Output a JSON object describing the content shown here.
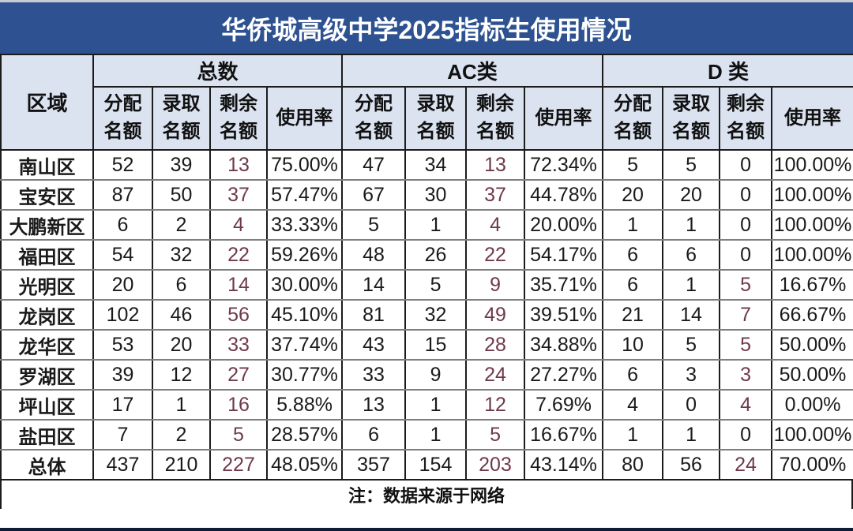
{
  "title": "华侨城高级中学2025指标生使用情况",
  "note_label": "注：数据来源于网络",
  "colors": {
    "title_bar_bg": "#2E5291",
    "title_text": "#FFFFFF",
    "header_bg": "#DBE2F0",
    "remaining_accent": "#6E3A4A",
    "body_text": "#1A1A1A"
  },
  "chart_data": {
    "type": "table",
    "title": "华侨城高级中学2025指标生使用情况",
    "region_column_header": "区域",
    "column_groups": [
      {
        "label": "总数"
      },
      {
        "label": "AC类"
      },
      {
        "label": "D 类"
      }
    ],
    "sub_columns": [
      "分配名额",
      "录取名额",
      "剩余名额",
      "使用率"
    ],
    "rows": [
      {
        "region": "南山区",
        "total": [
          52,
          39,
          13,
          "75.00%"
        ],
        "ac": [
          47,
          34,
          13,
          "72.34%"
        ],
        "d": [
          5,
          5,
          0,
          "100.00%"
        ]
      },
      {
        "region": "宝安区",
        "total": [
          87,
          50,
          37,
          "57.47%"
        ],
        "ac": [
          67,
          30,
          37,
          "44.78%"
        ],
        "d": [
          20,
          20,
          0,
          "100.00%"
        ]
      },
      {
        "region": "大鹏新区",
        "total": [
          6,
          2,
          4,
          "33.33%"
        ],
        "ac": [
          5,
          1,
          4,
          "20.00%"
        ],
        "d": [
          1,
          1,
          0,
          "100.00%"
        ]
      },
      {
        "region": "福田区",
        "total": [
          54,
          32,
          22,
          "59.26%"
        ],
        "ac": [
          48,
          26,
          22,
          "54.17%"
        ],
        "d": [
          6,
          6,
          0,
          "100.00%"
        ]
      },
      {
        "region": "光明区",
        "total": [
          20,
          6,
          14,
          "30.00%"
        ],
        "ac": [
          14,
          5,
          9,
          "35.71%"
        ],
        "d": [
          6,
          1,
          5,
          "16.67%"
        ]
      },
      {
        "region": "龙岗区",
        "total": [
          102,
          46,
          56,
          "45.10%"
        ],
        "ac": [
          81,
          32,
          49,
          "39.51%"
        ],
        "d": [
          21,
          14,
          7,
          "66.67%"
        ]
      },
      {
        "region": "龙华区",
        "total": [
          53,
          20,
          33,
          "37.74%"
        ],
        "ac": [
          43,
          15,
          28,
          "34.88%"
        ],
        "d": [
          10,
          5,
          5,
          "50.00%"
        ]
      },
      {
        "region": "罗湖区",
        "total": [
          39,
          12,
          27,
          "30.77%"
        ],
        "ac": [
          33,
          9,
          24,
          "27.27%"
        ],
        "d": [
          6,
          3,
          3,
          "50.00%"
        ]
      },
      {
        "region": "坪山区",
        "total": [
          17,
          1,
          16,
          "5.88%"
        ],
        "ac": [
          13,
          1,
          12,
          "7.69%"
        ],
        "d": [
          4,
          0,
          4,
          "0.00%"
        ]
      },
      {
        "region": "盐田区",
        "total": [
          7,
          2,
          5,
          "28.57%"
        ],
        "ac": [
          6,
          1,
          5,
          "16.67%"
        ],
        "d": [
          1,
          1,
          0,
          "100.00%"
        ]
      },
      {
        "region": "总体",
        "total": [
          437,
          210,
          227,
          "48.05%"
        ],
        "ac": [
          357,
          154,
          203,
          "43.14%"
        ],
        "d": [
          80,
          56,
          24,
          "70.00%"
        ]
      }
    ]
  }
}
